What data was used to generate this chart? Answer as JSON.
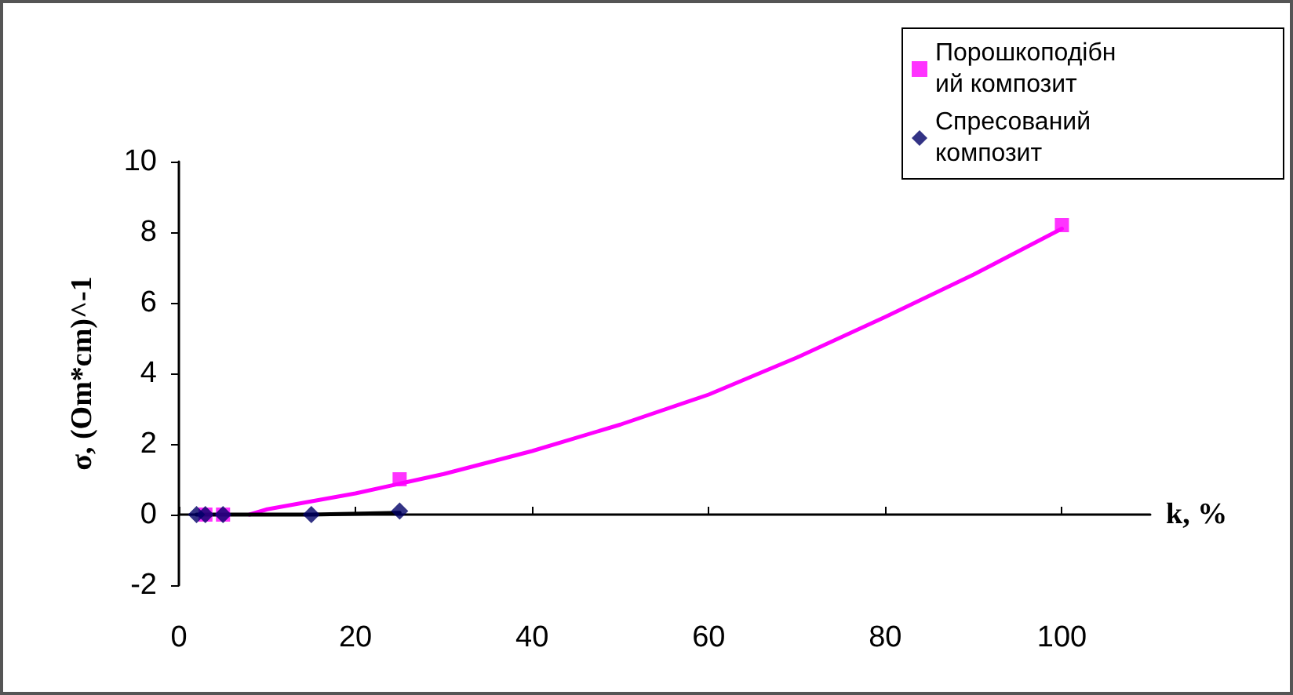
{
  "chart_data": {
    "type": "scatter",
    "xlabel": "k, %",
    "ylabel": "σ, (Om*cm)^-1",
    "xlim": [
      0,
      110
    ],
    "xticks": [
      0,
      20,
      40,
      60,
      80,
      100
    ],
    "ylim": [
      -2,
      10
    ],
    "yticks": [
      -2,
      0,
      2,
      4,
      6,
      8,
      10
    ],
    "legend": "top right",
    "series": [
      {
        "name": "Порошкоподібний композит",
        "marker": "square",
        "color": "#ff00ff",
        "x": [
          3,
          5,
          25,
          100
        ],
        "values": [
          0,
          0,
          1.0,
          8.2
        ]
      },
      {
        "name": "Спресований композит",
        "marker": "diamond",
        "color": "#000066",
        "x": [
          2,
          3,
          5,
          15,
          25
        ],
        "values": [
          0,
          0,
          0,
          0,
          0.1
        ]
      },
      {
        "type": "line",
        "marker": "none",
        "color": "#ff00ff",
        "x": [
          8,
          10,
          20,
          30,
          40,
          50,
          60,
          70,
          80,
          90,
          100
        ],
        "values": [
          0,
          0.15,
          0.6,
          1.15,
          1.8,
          2.55,
          3.4,
          4.45,
          5.6,
          6.8,
          8.1
        ]
      },
      {
        "type": "line",
        "marker": "none",
        "color": "#000000",
        "x": [
          2,
          15,
          25
        ],
        "values": [
          0,
          0,
          0.05
        ]
      }
    ]
  }
}
